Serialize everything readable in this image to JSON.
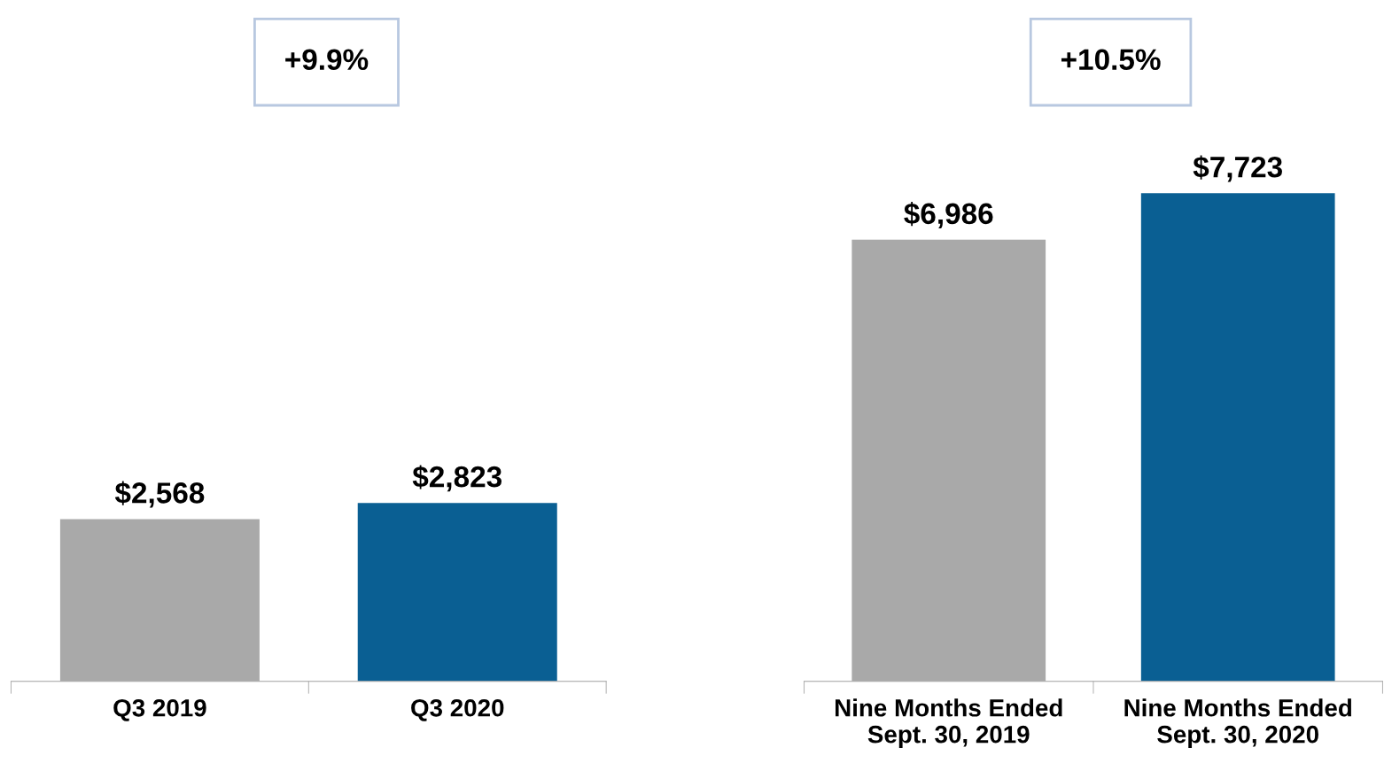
{
  "chart_data": [
    {
      "type": "bar",
      "categories": [
        "Q3 2019",
        "Q3 2020"
      ],
      "values": [
        2568,
        2823
      ],
      "colors": [
        "#a9a9a9",
        "#0a5f93"
      ],
      "value_labels": [
        "$2,568",
        "$2,823"
      ],
      "annotations": [
        "+9.9%"
      ]
    },
    {
      "type": "bar",
      "categories": [
        "Nine Months Ended\nSept. 30, 2019",
        "Nine Months Ended\nSept. 30, 2020"
      ],
      "values": [
        6986,
        7723
      ],
      "colors": [
        "#a9a9a9",
        "#0a5f93"
      ],
      "value_labels": [
        "$6,986",
        "$7,723"
      ],
      "annotations": [
        "+10.5%"
      ]
    }
  ]
}
